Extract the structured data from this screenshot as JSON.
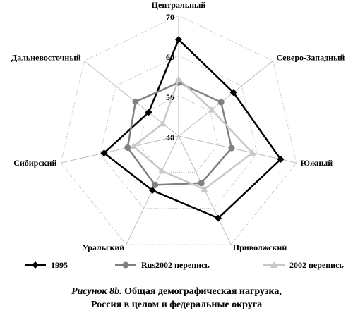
{
  "chart_data": {
    "type": "radar",
    "categories": [
      "Центральный",
      "Северо-Западный",
      "Южный",
      "Приволжский",
      "Уральский",
      "Сибирский",
      "Дальневосточный"
    ],
    "series": [
      {
        "name": "1995",
        "color": "#000000",
        "marker": "diamond",
        "values": [
          64,
          57.4,
          66,
          62.7,
          55,
          59,
          49.5
        ]
      },
      {
        "name": "Rus2002 перепись",
        "color": "#808080",
        "marker": "circle",
        "values": [
          53.3,
          53.5,
          53.5,
          53,
          53.5,
          53,
          53.7
        ]
      },
      {
        "name": "2002 перепись",
        "color": "#c8c8c8",
        "marker": "triangle",
        "values": [
          54.2,
          50.5,
          58.8,
          54.7,
          49.6,
          51.5,
          45
        ]
      }
    ],
    "ylim": [
      40,
      70
    ],
    "yticks": [
      40,
      50,
      60,
      70
    ],
    "grid": true,
    "caption_label": "Рисунок 8b.",
    "caption": [
      "Общая демографическая нагрузка,",
      "Россия в целом и федеральные округа"
    ]
  }
}
